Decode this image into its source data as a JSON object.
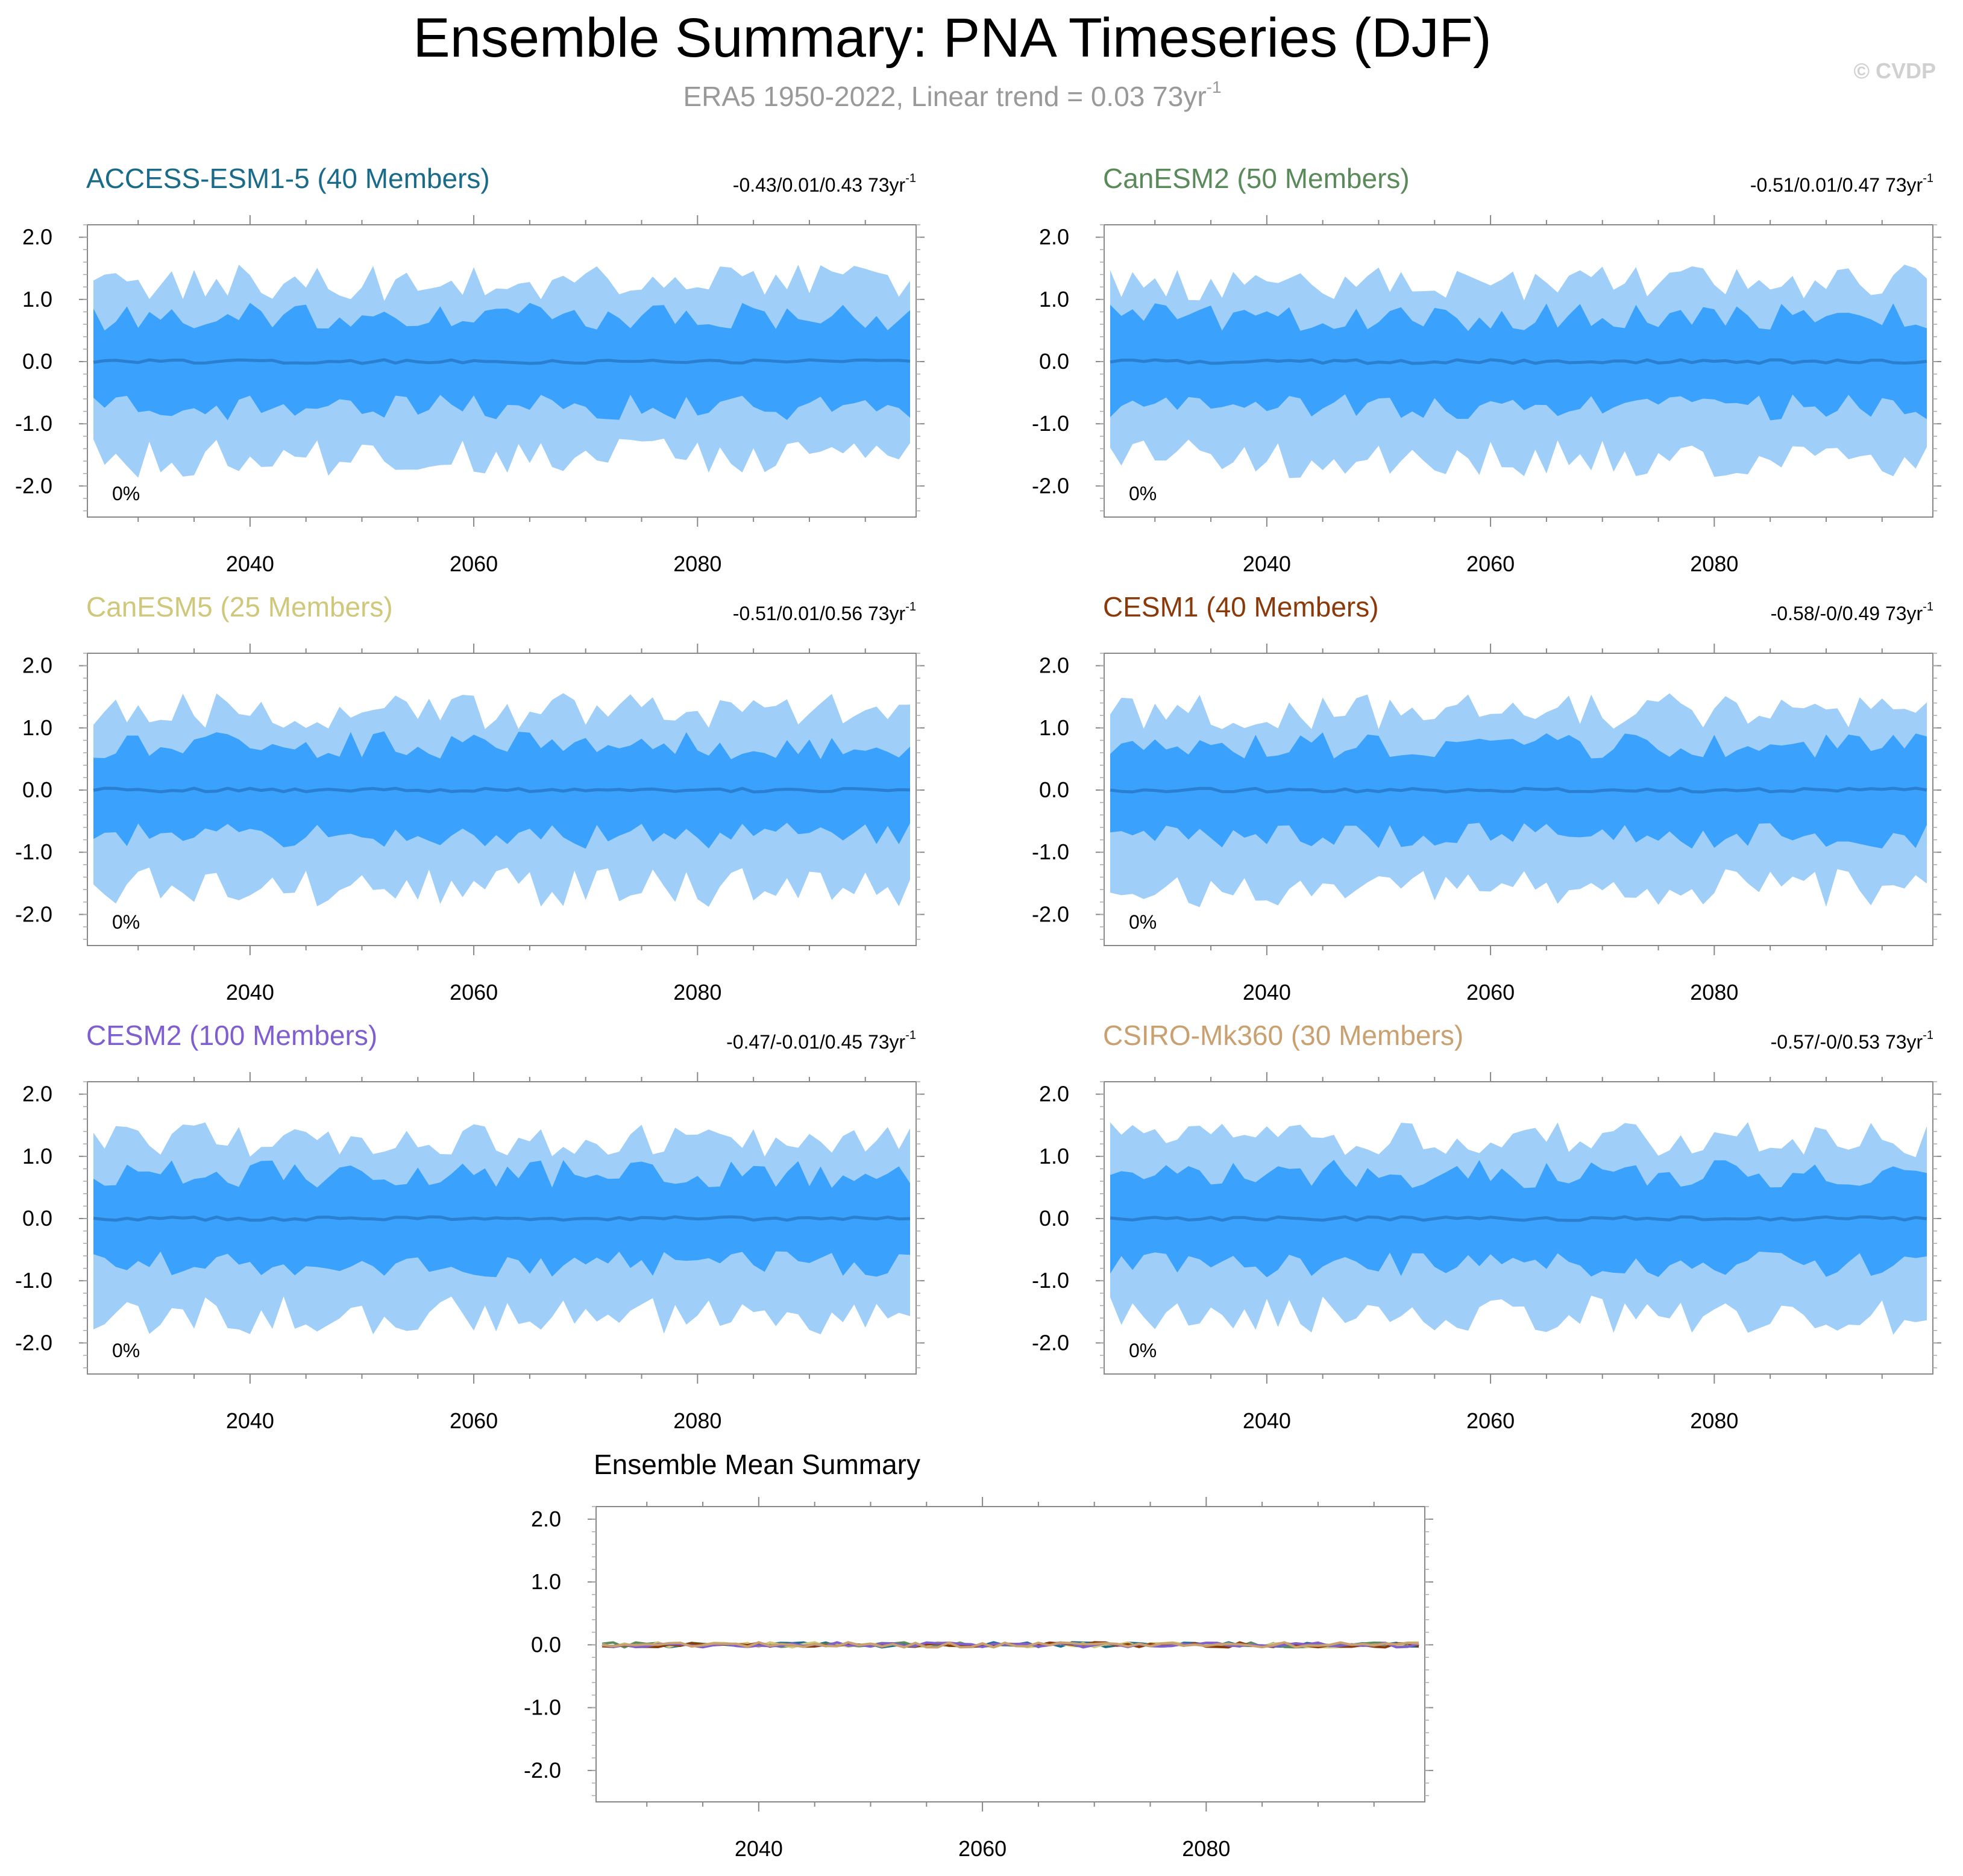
{
  "title": "Ensemble Summary: PNA Timeseries (DJF)",
  "subtitle": {
    "text": "ERA5 1950-2022, Linear trend = 0.03 73yr",
    "sup": "-1"
  },
  "watermark": "© CVDP",
  "panels": [
    {
      "title": "ACCESS-ESM1-5 (40 Members)",
      "color": "#1a6b8a",
      "trend": "-0.43/0.01/0.43 73yr",
      "trend_sup": "-1",
      "pct": "0%"
    },
    {
      "title": "CanESM2 (50 Members)",
      "color": "#5a8a5a",
      "trend": "-0.51/0.01/0.47 73yr",
      "trend_sup": "-1",
      "pct": "0%"
    },
    {
      "title": "CanESM5 (25 Members)",
      "color": "#cfc77a",
      "trend": "-0.51/0.01/0.56 73yr",
      "trend_sup": "-1",
      "pct": "0%"
    },
    {
      "title": "CESM1 (40 Members)",
      "color": "#8a3a0a",
      "trend": "-0.58/-0/0.49 73yr",
      "trend_sup": "-1",
      "pct": "0%"
    },
    {
      "title": "CESM2 (100 Members)",
      "color": "#7f5fcf",
      "trend": "-0.47/-0.01/0.45 73yr",
      "trend_sup": "-1",
      "pct": "0%"
    },
    {
      "title": "CSIRO-Mk360 (30 Members)",
      "color": "#c9a070",
      "trend": "-0.57/-0/0.53 73yr",
      "trend_sup": "-1",
      "pct": "0%"
    }
  ],
  "mean_panel": {
    "title": "Ensemble Mean Summary"
  },
  "colors": {
    "outer_band": "#9fcff8",
    "inner_band": "#3aa2fc",
    "mean_line": "#2a7fd0",
    "text": "#000000",
    "subtitle": "#999999",
    "watermark": "#d0d0d0"
  },
  "chart_data": {
    "type": "area",
    "x_range": [
      2026,
      2099
    ],
    "ylim": [
      -2.5,
      2.2
    ],
    "x_ticks": [
      "2040",
      "2060",
      "2080"
    ],
    "y_ticks": [
      "2.0",
      "1.0",
      "0.0",
      "-1.0",
      "-2.0"
    ],
    "bands": [
      {
        "name": "outer",
        "amplitude": 1.3
      },
      {
        "name": "inner",
        "amplitude": 0.7
      }
    ],
    "mean_lines": [
      {
        "color": "#1a6b8a"
      },
      {
        "color": "#5a8a5a"
      },
      {
        "color": "#cfc77a"
      },
      {
        "color": "#8a3a0a"
      },
      {
        "color": "#7f5fcf"
      },
      {
        "color": "#c9a070"
      }
    ]
  }
}
